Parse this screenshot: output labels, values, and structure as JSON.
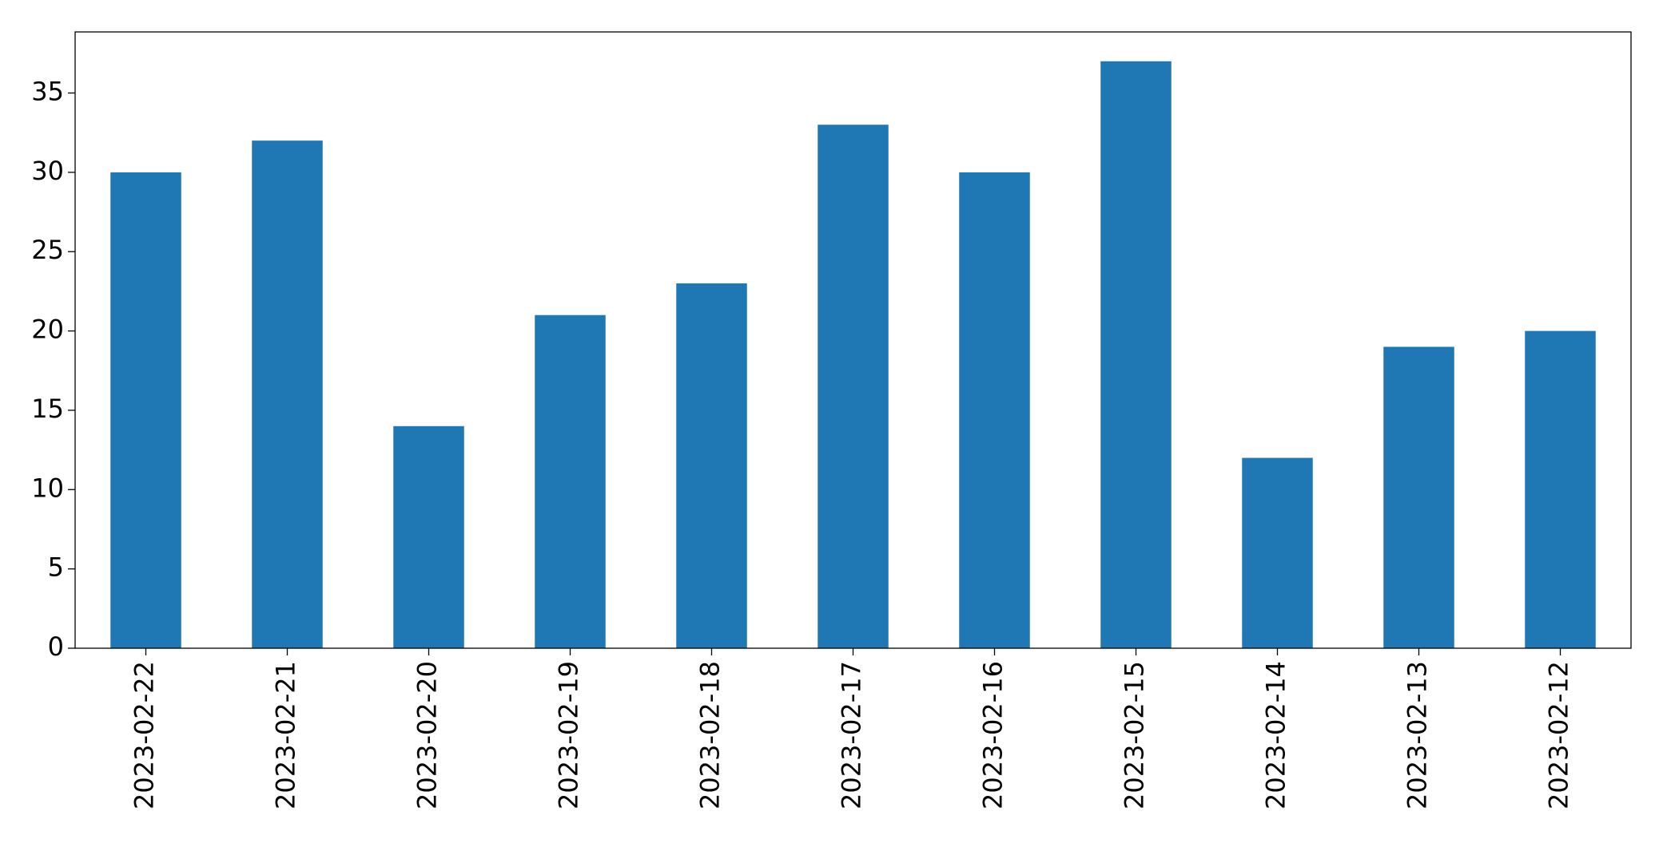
{
  "chart_data": {
    "type": "bar",
    "categories": [
      "2023-02-22",
      "2023-02-21",
      "2023-02-20",
      "2023-02-19",
      "2023-02-18",
      "2023-02-17",
      "2023-02-16",
      "2023-02-15",
      "2023-02-14",
      "2023-02-13",
      "2023-02-12"
    ],
    "values": [
      30,
      32,
      14,
      21,
      23,
      33,
      30,
      37,
      12,
      19,
      20
    ],
    "color": "#1f77b4",
    "ylim": [
      0,
      38.85
    ],
    "yticks": [
      0,
      5,
      10,
      15,
      20,
      25,
      30,
      35
    ],
    "grid": false
  }
}
